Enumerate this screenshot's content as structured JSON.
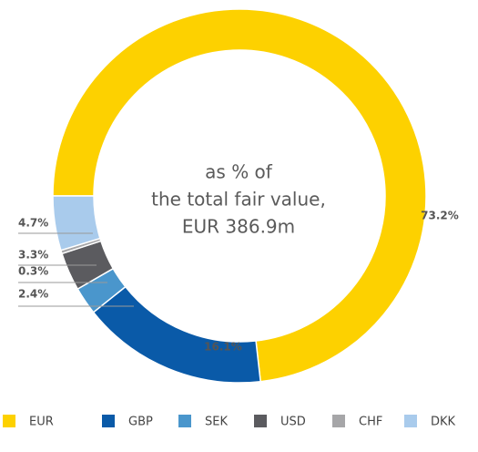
{
  "chart_data": {
    "type": "pie",
    "annotation": [
      "as % of",
      "the total fair value,",
      "EUR 386.9m"
    ],
    "categories": [
      "EUR",
      "GBP",
      "SEK",
      "USD",
      "CHF",
      "DKK"
    ],
    "values": [
      73.2,
      16.1,
      2.4,
      3.3,
      0.3,
      4.7
    ],
    "value_labels": [
      "73.2%",
      "16.1%",
      "2.4%",
      "3.3%",
      "0.3%",
      "4.7%"
    ],
    "colors": [
      "#fdd100",
      "#0a5aa8",
      "#4a96cc",
      "#5b5b5f",
      "#a6a6a8",
      "#a9cbec"
    ],
    "legend": "bottom"
  }
}
